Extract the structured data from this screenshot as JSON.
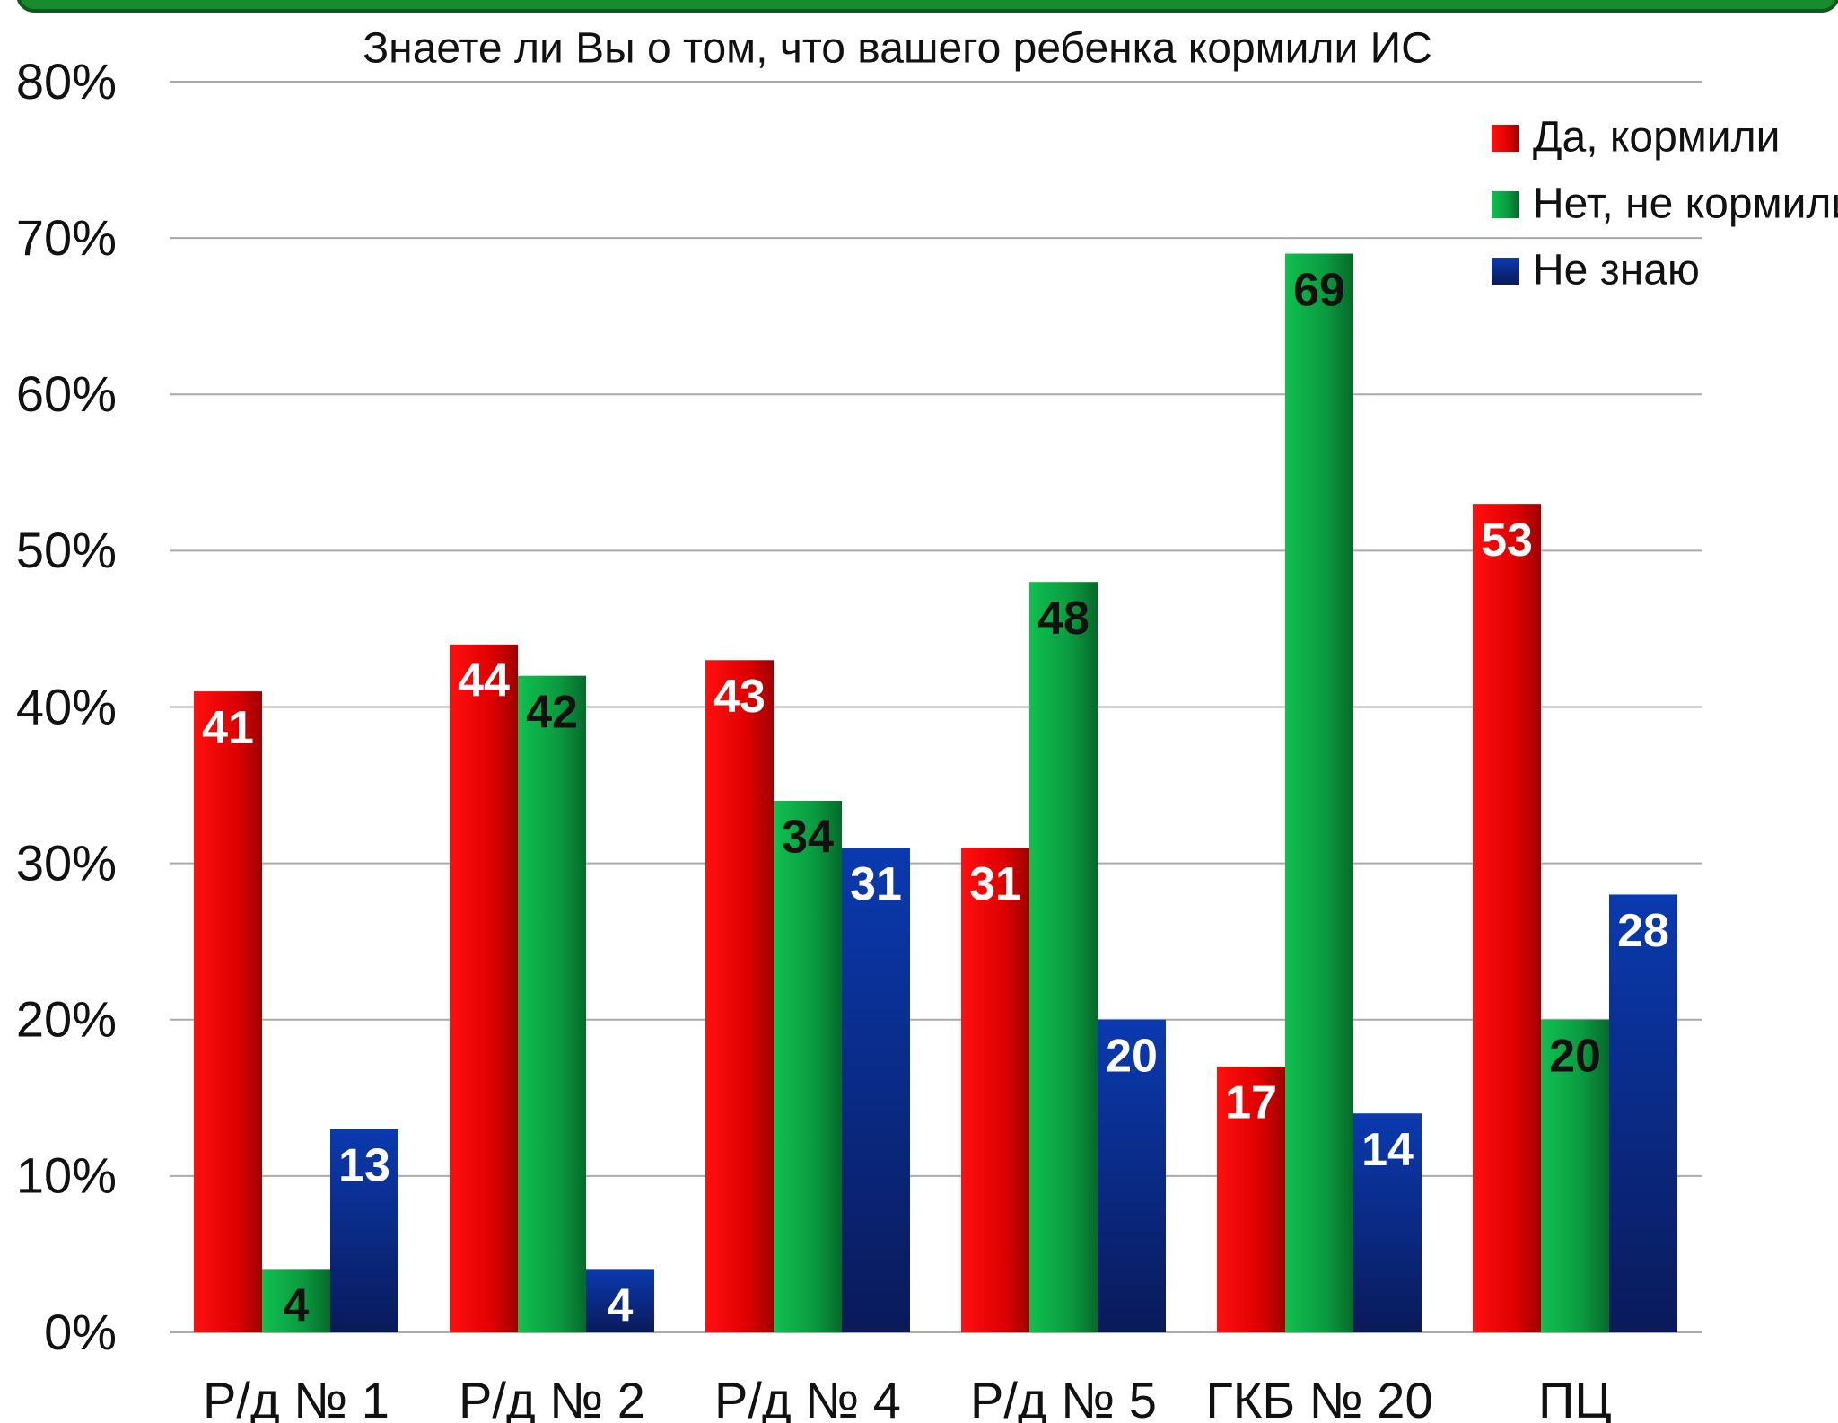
{
  "chart_data": {
    "type": "bar",
    "title": "Знаете ли Вы о том, что вашего ребенка кормили ИС",
    "categories": [
      "Р/д № 1",
      "Р/д № 2",
      "Р/д № 4",
      "Р/д № 5",
      "ГКБ № 20",
      "ПЦ"
    ],
    "series": [
      {
        "name": "Да, кормили",
        "color": "#e00000",
        "values": [
          41,
          44,
          43,
          31,
          17,
          53
        ]
      },
      {
        "name": "Нет, не кормили",
        "color": "#0a9a40",
        "values": [
          4,
          42,
          34,
          48,
          69,
          20
        ]
      },
      {
        "name": "Не знаю",
        "color": "#0a2a90",
        "values": [
          13,
          4,
          31,
          20,
          14,
          28
        ]
      }
    ],
    "ylim": [
      0,
      80
    ],
    "yticks": [
      {
        "value": 0,
        "label": "0%"
      },
      {
        "value": 10,
        "label": "10%"
      },
      {
        "value": 20,
        "label": "20%"
      },
      {
        "value": 30,
        "label": "30%"
      },
      {
        "value": 40,
        "label": "40%"
      },
      {
        "value": 50,
        "label": "50%"
      },
      {
        "value": 60,
        "label": "60%"
      },
      {
        "value": 70,
        "label": "70%"
      },
      {
        "value": 80,
        "label": "80%"
      }
    ],
    "grid": true,
    "legend": "top-right"
  }
}
